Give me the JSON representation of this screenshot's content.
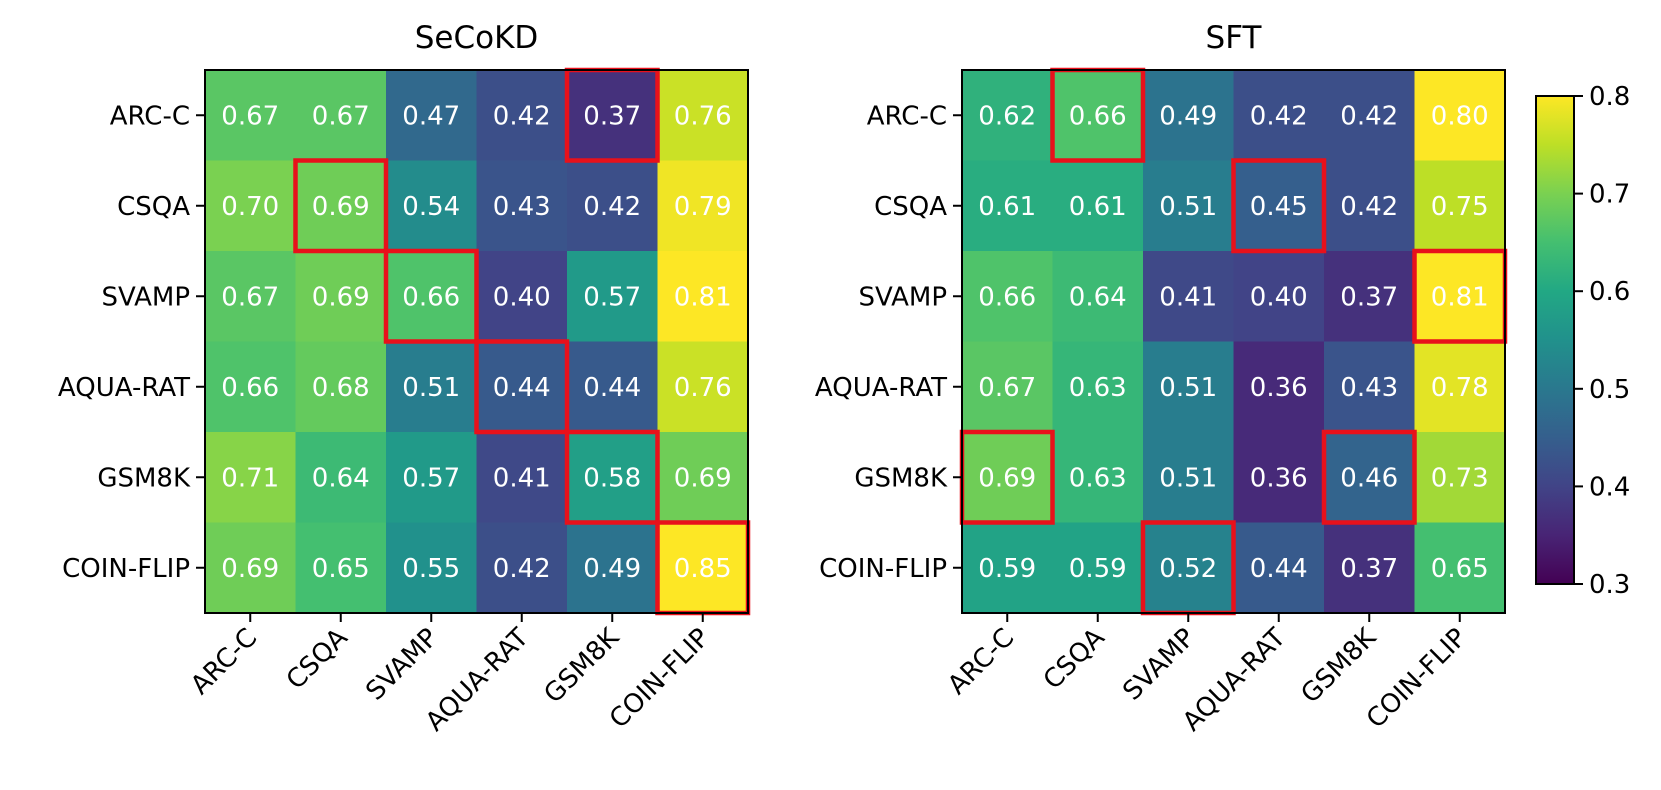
{
  "chart_data": [
    {
      "type": "heatmap",
      "title": "SeCoKD",
      "rows": [
        "ARC-C",
        "CSQA",
        "SVAMP",
        "AQUA-RAT",
        "GSM8K",
        "COIN-FLIP"
      ],
      "cols": [
        "ARC-C",
        "CSQA",
        "SVAMP",
        "AQUA-RAT",
        "GSM8K",
        "COIN-FLIP"
      ],
      "values": [
        [
          0.67,
          0.67,
          0.47,
          0.42,
          0.37,
          0.76
        ],
        [
          0.7,
          0.69,
          0.54,
          0.43,
          0.42,
          0.79
        ],
        [
          0.67,
          0.69,
          0.66,
          0.4,
          0.57,
          0.81
        ],
        [
          0.66,
          0.68,
          0.51,
          0.44,
          0.44,
          0.76
        ],
        [
          0.71,
          0.64,
          0.57,
          0.41,
          0.58,
          0.69
        ],
        [
          0.69,
          0.65,
          0.55,
          0.42,
          0.49,
          0.85
        ]
      ],
      "labels": [
        [
          "0.67",
          "0.67",
          "0.47",
          "0.42",
          "0.37",
          "0.76"
        ],
        [
          "0.70",
          "0.69",
          "0.54",
          "0.43",
          "0.42",
          "0.79"
        ],
        [
          "0.67",
          "0.69",
          "0.66",
          "0.40",
          "0.57",
          "0.81"
        ],
        [
          "0.66",
          "0.68",
          "0.51",
          "0.44",
          "0.44",
          "0.76"
        ],
        [
          "0.71",
          "0.64",
          "0.57",
          "0.41",
          "0.58",
          "0.69"
        ],
        [
          "0.69",
          "0.65",
          "0.55",
          "0.42",
          "0.49",
          "0.85"
        ]
      ],
      "highlighted": [
        [
          0,
          4
        ],
        [
          1,
          1
        ],
        [
          2,
          2
        ],
        [
          3,
          3
        ],
        [
          4,
          4
        ],
        [
          5,
          5
        ]
      ],
      "highlight_color": "#e8111b"
    },
    {
      "type": "heatmap",
      "title": "SFT",
      "rows": [
        "ARC-C",
        "CSQA",
        "SVAMP",
        "AQUA-RAT",
        "GSM8K",
        "COIN-FLIP"
      ],
      "cols": [
        "ARC-C",
        "CSQA",
        "SVAMP",
        "AQUA-RAT",
        "GSM8K",
        "COIN-FLIP"
      ],
      "values": [
        [
          0.62,
          0.66,
          0.49,
          0.42,
          0.42,
          0.8
        ],
        [
          0.61,
          0.61,
          0.51,
          0.45,
          0.42,
          0.75
        ],
        [
          0.66,
          0.64,
          0.41,
          0.4,
          0.37,
          0.81
        ],
        [
          0.67,
          0.63,
          0.51,
          0.36,
          0.43,
          0.78
        ],
        [
          0.69,
          0.63,
          0.51,
          0.36,
          0.46,
          0.73
        ],
        [
          0.59,
          0.59,
          0.52,
          0.44,
          0.37,
          0.65
        ]
      ],
      "labels": [
        [
          "0.62",
          "0.66",
          "0.49",
          "0.42",
          "0.42",
          "0.80"
        ],
        [
          "0.61",
          "0.61",
          "0.51",
          "0.45",
          "0.42",
          "0.75"
        ],
        [
          "0.66",
          "0.64",
          "0.41",
          "0.40",
          "0.37",
          "0.81"
        ],
        [
          "0.67",
          "0.63",
          "0.51",
          "0.36",
          "0.43",
          "0.78"
        ],
        [
          "0.69",
          "0.63",
          "0.51",
          "0.36",
          "0.46",
          "0.73"
        ],
        [
          "0.59",
          "0.59",
          "0.52",
          "0.44",
          "0.37",
          "0.65"
        ]
      ],
      "highlighted": [
        [
          0,
          1
        ],
        [
          1,
          3
        ],
        [
          2,
          5
        ],
        [
          4,
          0
        ],
        [
          4,
          4
        ],
        [
          5,
          2
        ]
      ],
      "highlight_color": "#e8111b"
    }
  ],
  "colorbar": {
    "colormap": "viridis",
    "vmin": 0.3,
    "vmax": 0.8,
    "ticks": [
      "0.3",
      "0.4",
      "0.5",
      "0.6",
      "0.7",
      "0.8"
    ]
  }
}
